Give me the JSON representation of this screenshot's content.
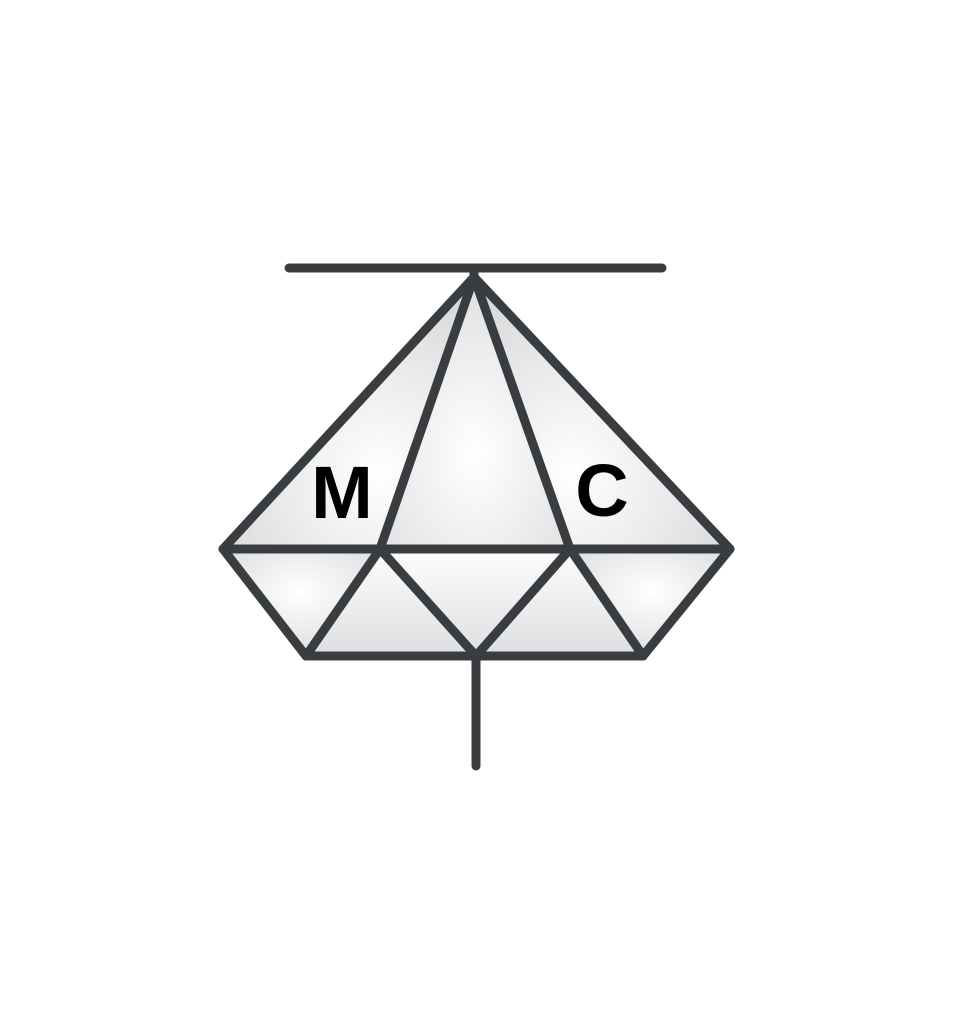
{
  "logo": {
    "name": "diamond-monogram",
    "letters": {
      "left": "M",
      "right": "C"
    },
    "colors": {
      "stroke": "#3a3d40",
      "letter": "#000000",
      "facet_light": "#ffffff",
      "facet_shade": "#d8d9dc",
      "background": "#ffffff"
    }
  }
}
